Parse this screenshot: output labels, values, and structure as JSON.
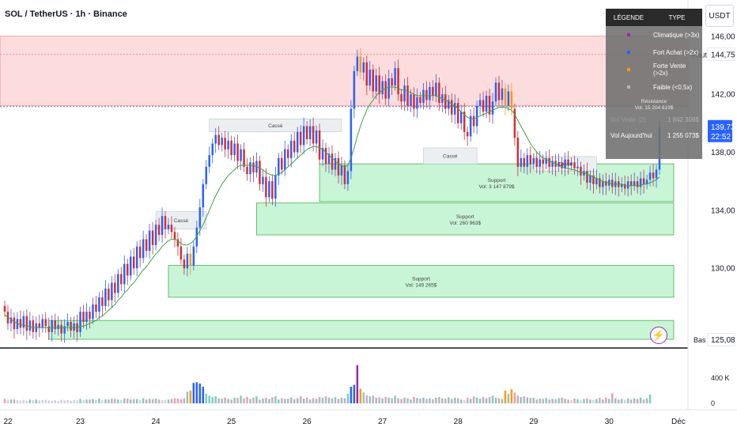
{
  "header": {
    "title": "SOL / TetherUS · 1h · Binance",
    "currency_button": "USDT"
  },
  "legend": {
    "col_legend": "LÉGENDE",
    "col_type": "TYPE",
    "rows": [
      {
        "label": "Climatique (>3x)",
        "color": "#9c27b0"
      },
      {
        "label": "Fort Achat (>2x)",
        "color": "#2962ff"
      },
      {
        "label": "Forte Vente (>2x)",
        "color": "#ff9800"
      },
      {
        "label": "Faible (<0,5x)",
        "color": "#b2b5be"
      }
    ],
    "resistance_title": "Résistance",
    "resistance_vol": "Vol: 15 204 819$",
    "vol_today_faint_label": "Vol Veille (2)",
    "vol_today_faint_value": "1 842 309$",
    "vol_today_label": "Vol Aujourd'hui",
    "vol_today_value": "1 255 073$"
  },
  "price_axis": {
    "ticks": [
      "146,00",
      "142,00",
      "138,00",
      "134,00",
      "130,00"
    ],
    "high_label": "Haut",
    "high_value": "144,75",
    "low_label": "Bas",
    "low_value": "125,08",
    "current_price": "139,73",
    "countdown": "22:52"
  },
  "volume_axis": {
    "ticks": [
      "400 K",
      "0"
    ]
  },
  "time_axis": {
    "ticks": [
      "22",
      "23",
      "24",
      "25",
      "26",
      "27",
      "28",
      "29",
      "30",
      "Déc"
    ]
  },
  "annotations": {
    "casse": "Cassé",
    "support_title": "Support",
    "support_vol_1": "Vol: 3 147 879$",
    "support_vol_2": "Vol: 260 963$",
    "support_vol_3": "Vol: 149 265$"
  },
  "colors": {
    "up": "#2962ff",
    "down": "#d32f2f",
    "strong_sell": "#ff9800",
    "climactic": "#9c27b0",
    "ma": "#43a047",
    "resistance_zone": "#fcdcdc",
    "support_zone": "#c8f5d6"
  },
  "chart_data": {
    "type": "candlestick",
    "symbol": "SOL / TetherUS",
    "interval": "1h",
    "ylim": [
      124.5,
      148.5
    ],
    "x_labels": [
      "22",
      "23",
      "24",
      "25",
      "26",
      "27",
      "28",
      "29",
      "30",
      "Déc"
    ],
    "closes": [
      127.0,
      126.2,
      126.6,
      125.8,
      126.5,
      125.9,
      126.7,
      125.7,
      126.4,
      125.6,
      126.2,
      125.9,
      126.5,
      126.0,
      125.6,
      126.4,
      125.8,
      126.1,
      125.5,
      126.0,
      126.3,
      125.7,
      126.2,
      125.6,
      127.0,
      126.3,
      127.0,
      126.5,
      127.5,
      127.0,
      128.0,
      127.4,
      128.6,
      127.8,
      129.0,
      128.3,
      129.6,
      128.9,
      130.3,
      129.5,
      130.8,
      130.0,
      131.5,
      130.7,
      132.0,
      131.2,
      132.6,
      131.6,
      133.0,
      132.3,
      133.6,
      132.7,
      133.0,
      132.5,
      132.0,
      131.5,
      130.6,
      130.0,
      131.0,
      130.2,
      131.5,
      132.8,
      134.2,
      135.8,
      137.0,
      137.8,
      138.6,
      139.2,
      138.5,
      139.0,
      138.2,
      138.8,
      137.8,
      138.6,
      137.4,
      138.2,
      137.0,
      136.5,
      137.3,
      136.6,
      137.4,
      135.8,
      136.3,
      134.9,
      136.0,
      134.8,
      136.4,
      137.6,
      136.8,
      138.2,
      137.6,
      138.8,
      138.0,
      139.4,
      138.5,
      139.8,
      138.9,
      139.8,
      138.6,
      139.5,
      137.5,
      138.3,
      137.2,
      137.9,
      136.8,
      137.6,
      136.4,
      137.1,
      135.8,
      136.7,
      141.0,
      143.6,
      144.6,
      143.5,
      144.2,
      142.6,
      143.7,
      142.2,
      143.3,
      142.0,
      142.9,
      141.7,
      143.1,
      142.6,
      143.8,
      142.0,
      141.5,
      142.6,
      141.2,
      142.0,
      141.0,
      141.8,
      141.4,
      142.3,
      141.6,
      142.5,
      141.9,
      142.8,
      141.4,
      142.0,
      141.0,
      141.6,
      140.6,
      141.4,
      140.0,
      140.8,
      139.4,
      139.1,
      140.5,
      139.8,
      141.2,
      141.6,
      140.8,
      141.9,
      140.6,
      141.5,
      142.8,
      141.6,
      142.4,
      141.2,
      142.2,
      141.0,
      139.0,
      137.0,
      137.6,
      137.0,
      137.8,
      137.2,
      137.6,
      137.0,
      137.5,
      137.2,
      137.6,
      137.0,
      137.4,
      137.0,
      137.3,
      136.9,
      137.5,
      137.1,
      137.3,
      136.9,
      137.0,
      136.4,
      136.7,
      135.9,
      136.4,
      135.8,
      136.2,
      135.6,
      136.0,
      135.7,
      136.1,
      135.6,
      136.0,
      135.6,
      135.8,
      135.5,
      136.0,
      135.7,
      136.0,
      135.6,
      136.2,
      135.8,
      136.1,
      136.6,
      136.2,
      136.8,
      139.73
    ],
    "sma": [
      126.8,
      126.6,
      126.5,
      126.3,
      126.2,
      126.1,
      126.1,
      126.0,
      126.0,
      125.9,
      125.9,
      125.9,
      125.9,
      125.9,
      125.9,
      125.9,
      125.9,
      125.9,
      125.9,
      125.9,
      125.9,
      125.9,
      125.9,
      125.9,
      126.0,
      126.0,
      126.1,
      126.2,
      126.3,
      126.4,
      126.6,
      126.7,
      126.9,
      127.1,
      127.3,
      127.5,
      127.8,
      128.0,
      128.3,
      128.5,
      128.8,
      129.0,
      129.3,
      129.6,
      129.9,
      130.1,
      130.4,
      130.7,
      131.0,
      131.2,
      131.5,
      131.7,
      131.9,
      132.0,
      132.0,
      131.9,
      131.7,
      131.6,
      131.6,
      131.7,
      131.9,
      132.2,
      132.6,
      133.0,
      133.5,
      134.0,
      134.5,
      135.0,
      135.4,
      135.8,
      136.1,
      136.4,
      136.6,
      136.8,
      137.0,
      137.1,
      137.1,
      137.1,
      137.1,
      137.1,
      137.0,
      136.9,
      136.8,
      136.6,
      136.5,
      136.4,
      136.4,
      136.5,
      136.6,
      136.8,
      137.0,
      137.2,
      137.4,
      137.6,
      137.8,
      138.0,
      138.2,
      138.3,
      138.4,
      138.4,
      138.3,
      138.2,
      138.0,
      137.8,
      137.6,
      137.4,
      137.2,
      137.1,
      137.0,
      137.1,
      137.6,
      138.3,
      139.1,
      139.8,
      140.4,
      140.9,
      141.3,
      141.6,
      141.9,
      142.1,
      142.3,
      142.4,
      142.5,
      142.5,
      142.5,
      142.4,
      142.3,
      142.3,
      142.2,
      142.1,
      142.0,
      141.9,
      141.9,
      141.9,
      141.9,
      141.9,
      141.9,
      141.9,
      141.8,
      141.7,
      141.6,
      141.5,
      141.3,
      141.2,
      141.0,
      140.8,
      140.6,
      140.4,
      140.3,
      140.3,
      140.4,
      140.5,
      140.6,
      140.7,
      140.8,
      140.9,
      141.0,
      141.1,
      141.1,
      141.1,
      141.0,
      140.9,
      140.6,
      140.2,
      139.8,
      139.4,
      139.0,
      138.6,
      138.3,
      138.0,
      137.8,
      137.6,
      137.5,
      137.4,
      137.3,
      137.2,
      137.1,
      137.0,
      136.9,
      136.9,
      136.8,
      136.8,
      136.7,
      136.6,
      136.6,
      136.5,
      136.4,
      136.3,
      136.2,
      136.1,
      136.0,
      135.9,
      135.9,
      135.8,
      135.8,
      135.8,
      135.8,
      135.7,
      135.7,
      135.7,
      135.7,
      135.7,
      135.7,
      135.8,
      135.8,
      135.9,
      136.0,
      136.1,
      136.3
    ],
    "volume_k": [
      70,
      55,
      60,
      60,
      50,
      45,
      55,
      40,
      60,
      50,
      60,
      45,
      50,
      55,
      45,
      40,
      50,
      35,
      55,
      45,
      50,
      40,
      55,
      50,
      70,
      55,
      60,
      60,
      65,
      55,
      75,
      50,
      65,
      60,
      70,
      70,
      60,
      55,
      80,
      75,
      60,
      65,
      70,
      55,
      80,
      60,
      70,
      65,
      75,
      60,
      50,
      55,
      60,
      70,
      80,
      75,
      65,
      80,
      180,
      200,
      320,
      330,
      310,
      260,
      150,
      120,
      100,
      110,
      80,
      75,
      90,
      70,
      60,
      90,
      85,
      120,
      80,
      100,
      70,
      90,
      110,
      60,
      75,
      85,
      70,
      95,
      110,
      60,
      80,
      70,
      75,
      90,
      65,
      80,
      110,
      75,
      90,
      60,
      80,
      70,
      100,
      85,
      110,
      90,
      80,
      95,
      70,
      85,
      80,
      150,
      260,
      290,
      600,
      230,
      170,
      130,
      110,
      120,
      90,
      95,
      80,
      100,
      90,
      80,
      120,
      80,
      70,
      90,
      80,
      60,
      100,
      85,
      75,
      90,
      70,
      80,
      65,
      90,
      100,
      80,
      75,
      95,
      70,
      90,
      80,
      60,
      50,
      85,
      70,
      110,
      90,
      75,
      100,
      80,
      100,
      120,
      90,
      80,
      70,
      200,
      150,
      220,
      170,
      120,
      100,
      110,
      95,
      85,
      90,
      60,
      75,
      70,
      85,
      60,
      70,
      65,
      80,
      90,
      70,
      60,
      55,
      75,
      65,
      50,
      70,
      80,
      60,
      55,
      70,
      85,
      60,
      90,
      70,
      160,
      80,
      60,
      70,
      55,
      75,
      60,
      80,
      70,
      90,
      60,
      80,
      140
    ],
    "resistance_zone": [
      141.2,
      146.0
    ],
    "support_zones": [
      {
        "range": [
          134.6,
          137.2
        ],
        "label": "Support",
        "vol": "Vol: 3 147 879$"
      },
      {
        "range": [
          132.3,
          134.5
        ],
        "label": "Support",
        "vol": "Vol: 260 963$"
      },
      {
        "range": [
          128.0,
          130.2
        ],
        "label": "Support",
        "vol": "Vol: 149 265$"
      },
      {
        "range": [
          125.1,
          126.4
        ],
        "label": "",
        "vol": ""
      }
    ],
    "broken_levels": [
      {
        "range": [
          132.7,
          133.9
        ],
        "label": "Cassé"
      },
      {
        "range": [
          139.4,
          140.3
        ],
        "label": "Cassé"
      },
      {
        "range": [
          137.2,
          138.3
        ],
        "label": "Cassé"
      },
      {
        "range": [
          136.7,
          137.7
        ],
        "label": "Cassé"
      }
    ],
    "high": 144.75,
    "low": 125.08,
    "last": 139.73
  }
}
